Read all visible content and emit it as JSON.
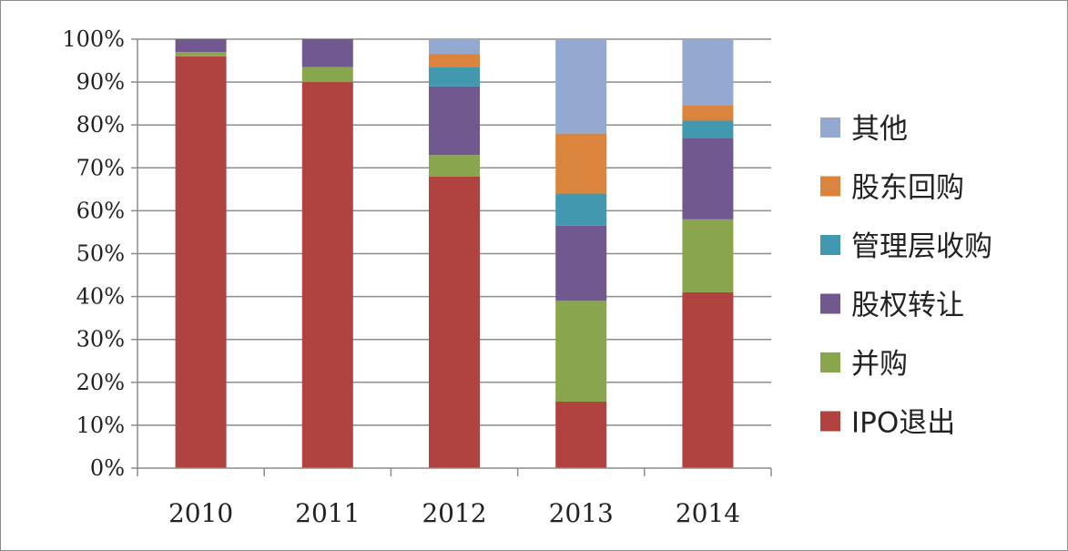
{
  "chart_data": {
    "type": "bar",
    "stacked": true,
    "percent": true,
    "title": "",
    "xlabel": "",
    "ylabel": "",
    "ylim": [
      0,
      100
    ],
    "yticks": [
      "0%",
      "10%",
      "20%",
      "30%",
      "40%",
      "50%",
      "60%",
      "70%",
      "80%",
      "90%",
      "100%"
    ],
    "grid": "horizontal",
    "legend_position": "right",
    "categories": [
      "2010",
      "2011",
      "2012",
      "2013",
      "2014"
    ],
    "series": [
      {
        "name": "IPO退出",
        "color": "#b04240",
        "values": [
          96,
          90,
          68,
          15.5,
          41
        ]
      },
      {
        "name": "并购",
        "color": "#89a54e",
        "values": [
          1,
          3.5,
          5,
          23.5,
          17
        ]
      },
      {
        "name": "股权转让",
        "color": "#71588f",
        "values": [
          3,
          6.5,
          16,
          17.5,
          19
        ]
      },
      {
        "name": "管理层收购",
        "color": "#4198af",
        "values": [
          0,
          0,
          4.5,
          7.5,
          4
        ]
      },
      {
        "name": "股东回购",
        "color": "#db843d",
        "values": [
          0,
          0,
          3,
          14,
          3.5
        ]
      },
      {
        "name": "其他",
        "color": "#93a9cf",
        "values": [
          0,
          0,
          3.5,
          22,
          15.5
        ]
      }
    ]
  }
}
